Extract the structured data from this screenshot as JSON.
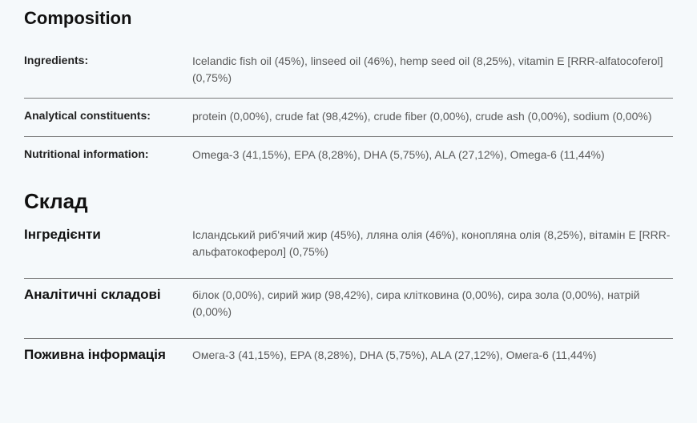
{
  "composition": {
    "heading": "Composition",
    "rows": [
      {
        "label": "Ingredients:",
        "value": "Icelandic fish oil (45%), linseed oil (46%), hemp seed oil (8,25%), vitamin E [RRR-alfatocoferol] (0,75%)"
      },
      {
        "label": "Analytical constituents:",
        "value": "protein (0,00%), crude fat (98,42%), crude fiber (0,00%), crude ash (0,00%), sodium (0,00%)"
      },
      {
        "label": "Nutritional information:",
        "value": "Omega-3 (41,15%), EPA (8,28%), DHA (5,75%), ALA (27,12%), Omega-6 (11,44%)"
      }
    ]
  },
  "sklad": {
    "heading": "Склад",
    "rows": [
      {
        "label": "Інгредієнти",
        "value": "Ісландський риб'ячий жир (45%), лляна олія (46%), конопляна олія (8,25%), вітамін E [RRR-альфатокоферол] (0,75%)"
      },
      {
        "label": "Аналітичні складові",
        "value": "білок (0,00%), сирий жир (98,42%), сира клітковина (0,00%), сира зола (0,00%), натрій (0,00%)"
      },
      {
        "label": "Поживна інформація",
        "value": "Омега-3 (41,15%), EPA (8,28%), DHA (5,75%), ALA (27,12%), Омега-6 (11,44%)"
      }
    ]
  },
  "colors": {
    "background": "#f5f9fb",
    "text_primary": "#111",
    "text_secondary": "#5a5a5a",
    "border": "#7a7a7a"
  },
  "typography": {
    "heading_en_fontsize": 22,
    "heading_uk_fontsize": 26,
    "label_fontsize": 14,
    "label_uk_fontsize": 17,
    "value_fontsize": 14
  }
}
